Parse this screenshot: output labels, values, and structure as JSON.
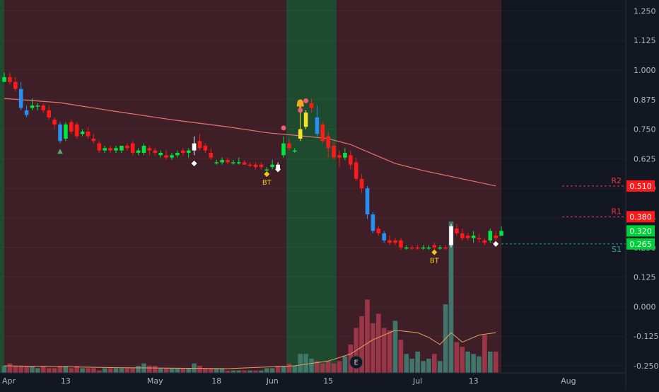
{
  "chart_data": {
    "type": "candlestick",
    "y_axis": {
      "min": -0.28,
      "max": 1.29,
      "ticks": [
        "1.250",
        "1.125",
        "1.000",
        "0.875",
        "0.750",
        "0.625",
        "0.500",
        "0.375",
        "0.250",
        "0.125",
        "0.000",
        "-0.125",
        "-0.250"
      ]
    },
    "x_axis": {
      "labels": [
        {
          "text": "Apr",
          "bar": 0
        },
        {
          "text": "13",
          "bar": 11
        },
        {
          "text": "May",
          "bar": 27
        },
        {
          "text": "18",
          "bar": 38
        },
        {
          "text": "Jun",
          "bar": 48
        },
        {
          "text": "15",
          "bar": 58
        },
        {
          "text": "Jul",
          "bar": 74
        },
        {
          "text": "13",
          "bar": 84
        },
        {
          "text": "Aug",
          "bar": 101
        }
      ]
    },
    "regions": [
      {
        "from": -3,
        "to": 0.5,
        "type": "bull"
      },
      {
        "from": 0.5,
        "to": 51,
        "type": "bear"
      },
      {
        "from": 51,
        "to": 60,
        "type": "bull"
      },
      {
        "from": 60,
        "to": 88.5,
        "type": "bear"
      }
    ],
    "colors": {
      "up": "#00e640",
      "down": "#ff1a1a",
      "strong_down": "#2a8df0",
      "strong_up": "#f5e12b",
      "neutral": "#ffffff",
      "ma": "#e8736c",
      "vol_up": "#3f7a6e",
      "vol_down": "#a0384a",
      "vol_ma": "#e8a060",
      "bull_bg": "#1e4a30",
      "bear_bg": "#3e1f28",
      "price_badge_up": "#00d03a",
      "price_badge_down": "#ff1a1a"
    },
    "candles": [
      [
        0.97,
        0.99,
        0.95,
        0.95,
        "up"
      ],
      [
        0.97,
        0.99,
        0.94,
        0.95,
        "down"
      ],
      [
        0.95,
        0.97,
        0.91,
        0.92,
        "down"
      ],
      [
        0.92,
        0.95,
        0.83,
        0.84,
        "strong_down"
      ],
      [
        0.83,
        0.85,
        0.8,
        0.81,
        "strong_down"
      ],
      [
        0.84,
        0.88,
        0.83,
        0.85,
        "up"
      ],
      [
        0.85,
        0.86,
        0.83,
        0.85,
        "up"
      ],
      [
        0.85,
        0.86,
        0.82,
        0.83,
        "down"
      ],
      [
        0.83,
        0.85,
        0.79,
        0.8,
        "down"
      ],
      [
        0.79,
        0.8,
        0.75,
        0.77,
        "down"
      ],
      [
        0.77,
        0.78,
        0.69,
        0.7,
        "strong_down"
      ],
      [
        0.71,
        0.78,
        0.7,
        0.77,
        "up"
      ],
      [
        0.78,
        0.79,
        0.73,
        0.74,
        "down"
      ],
      [
        0.77,
        0.78,
        0.71,
        0.72,
        "down"
      ],
      [
        0.73,
        0.75,
        0.72,
        0.74,
        "up"
      ],
      [
        0.74,
        0.76,
        0.71,
        0.72,
        "down"
      ],
      [
        0.71,
        0.73,
        0.69,
        0.7,
        "down"
      ],
      [
        0.69,
        0.7,
        0.65,
        0.66,
        "down"
      ],
      [
        0.66,
        0.68,
        0.65,
        0.67,
        "up"
      ],
      [
        0.67,
        0.68,
        0.65,
        0.66,
        "down"
      ],
      [
        0.66,
        0.68,
        0.65,
        0.67,
        "up"
      ],
      [
        0.66,
        0.68,
        0.65,
        0.68,
        "up"
      ],
      [
        0.68,
        0.69,
        0.66,
        0.67,
        "down"
      ],
      [
        0.69,
        0.7,
        0.64,
        0.65,
        "down"
      ],
      [
        0.65,
        0.67,
        0.64,
        0.66,
        "up"
      ],
      [
        0.65,
        0.69,
        0.64,
        0.68,
        "up"
      ],
      [
        0.67,
        0.68,
        0.64,
        0.66,
        "down"
      ],
      [
        0.66,
        0.67,
        0.64,
        0.65,
        "down"
      ],
      [
        0.65,
        0.66,
        0.63,
        0.64,
        "up"
      ],
      [
        0.64,
        0.66,
        0.62,
        0.63,
        "down"
      ],
      [
        0.63,
        0.65,
        0.62,
        0.64,
        "up"
      ],
      [
        0.65,
        0.66,
        0.63,
        0.64,
        "up"
      ],
      [
        0.66,
        0.67,
        0.64,
        0.65,
        "down"
      ],
      [
        0.65,
        0.67,
        0.63,
        0.66,
        "up"
      ],
      [
        0.66,
        0.72,
        0.64,
        0.69,
        "neutral"
      ],
      [
        0.7,
        0.73,
        0.66,
        0.67,
        "down"
      ],
      [
        0.68,
        0.69,
        0.65,
        0.66,
        "down"
      ],
      [
        0.65,
        0.67,
        0.62,
        0.63,
        "down"
      ],
      [
        0.61,
        0.62,
        0.6,
        0.61,
        "up"
      ],
      [
        0.61,
        0.63,
        0.6,
        0.62,
        "up"
      ],
      [
        0.62,
        0.63,
        0.6,
        0.61,
        "down"
      ],
      [
        0.61,
        0.62,
        0.6,
        0.61,
        "up"
      ],
      [
        0.61,
        0.63,
        0.6,
        0.61,
        "up"
      ],
      [
        0.61,
        0.62,
        0.6,
        0.6,
        "down"
      ],
      [
        0.6,
        0.61,
        0.59,
        0.6,
        "down"
      ],
      [
        0.6,
        0.61,
        0.58,
        0.59,
        "down"
      ],
      [
        0.59,
        0.61,
        0.58,
        0.6,
        "down"
      ],
      [
        0.58,
        0.59,
        0.56,
        0.58,
        "up"
      ],
      [
        0.59,
        0.62,
        0.58,
        0.6,
        "up"
      ],
      [
        0.6,
        0.61,
        0.57,
        0.58,
        "neutral"
      ],
      [
        0.64,
        0.72,
        0.63,
        0.69,
        "up"
      ],
      [
        0.69,
        0.71,
        0.66,
        0.67,
        "down"
      ],
      [
        0.66,
        0.67,
        0.65,
        0.66,
        "up"
      ],
      [
        0.71,
        0.85,
        0.7,
        0.75,
        "strong_up"
      ],
      [
        0.76,
        0.83,
        0.75,
        0.82,
        "strong_up"
      ],
      [
        0.84,
        0.88,
        0.82,
        0.86,
        "down"
      ],
      [
        0.8,
        0.85,
        0.72,
        0.73,
        "strong_down"
      ],
      [
        0.77,
        0.78,
        0.69,
        0.7,
        "down"
      ],
      [
        0.72,
        0.74,
        0.63,
        0.67,
        "down"
      ],
      [
        0.68,
        0.7,
        0.62,
        0.63,
        "down"
      ],
      [
        0.64,
        0.66,
        0.59,
        0.63,
        "down"
      ],
      [
        0.63,
        0.67,
        0.62,
        0.65,
        "up"
      ],
      [
        0.64,
        0.66,
        0.58,
        0.6,
        "down"
      ],
      [
        0.61,
        0.63,
        0.53,
        0.54,
        "down"
      ],
      [
        0.54,
        0.56,
        0.48,
        0.5,
        "down"
      ],
      [
        0.5,
        0.51,
        0.37,
        0.39,
        "strong_down"
      ],
      [
        0.39,
        0.4,
        0.31,
        0.32,
        "strong_down"
      ],
      [
        0.33,
        0.34,
        0.3,
        0.31,
        "down"
      ],
      [
        0.31,
        0.32,
        0.27,
        0.28,
        "strong_down"
      ],
      [
        0.28,
        0.3,
        0.26,
        0.27,
        "down"
      ],
      [
        0.27,
        0.29,
        0.26,
        0.28,
        "down"
      ],
      [
        0.28,
        0.29,
        0.24,
        0.25,
        "down"
      ],
      [
        0.25,
        0.26,
        0.24,
        0.25,
        "up"
      ],
      [
        0.25,
        0.26,
        0.24,
        0.25,
        "down"
      ],
      [
        0.25,
        0.26,
        0.24,
        0.25,
        "down"
      ],
      [
        0.25,
        0.26,
        0.24,
        0.25,
        "up"
      ],
      [
        0.25,
        0.26,
        0.24,
        0.25,
        "up"
      ],
      [
        0.26,
        0.27,
        0.24,
        0.25,
        "down"
      ],
      [
        0.25,
        0.26,
        0.24,
        0.25,
        "up"
      ],
      [
        0.25,
        0.26,
        0.24,
        0.25,
        "down"
      ],
      [
        0.26,
        0.35,
        0.25,
        0.34,
        "neutral"
      ],
      [
        0.33,
        0.35,
        0.3,
        0.31,
        "down"
      ],
      [
        0.31,
        0.33,
        0.28,
        0.29,
        "down"
      ],
      [
        0.29,
        0.31,
        0.28,
        0.3,
        "down"
      ],
      [
        0.29,
        0.32,
        0.27,
        0.3,
        "up"
      ],
      [
        0.29,
        0.31,
        0.27,
        0.29,
        "down"
      ],
      [
        0.28,
        0.29,
        0.26,
        0.27,
        "down"
      ],
      [
        0.28,
        0.33,
        0.27,
        0.32,
        "up"
      ],
      [
        0.3,
        0.32,
        0.28,
        0.29,
        "down"
      ],
      [
        0.3,
        0.34,
        0.3,
        0.32,
        "up"
      ]
    ],
    "moving_average": [
      [
        0,
        0.88
      ],
      [
        10,
        0.862
      ],
      [
        20,
        0.825
      ],
      [
        30,
        0.79
      ],
      [
        40,
        0.76
      ],
      [
        47,
        0.735
      ],
      [
        54,
        0.72
      ],
      [
        58,
        0.71
      ],
      [
        62,
        0.685
      ],
      [
        66,
        0.645
      ],
      [
        70,
        0.605
      ],
      [
        75,
        0.575
      ],
      [
        80,
        0.55
      ],
      [
        85,
        0.525
      ],
      [
        88,
        0.51
      ]
    ],
    "volume": {
      "scale_max": 0.5,
      "values": [
        0.03,
        0.04,
        0.03,
        0.03,
        0.03,
        0.03,
        0.02,
        0.03,
        0.02,
        0.02,
        0.03,
        0.03,
        0.02,
        0.03,
        0.02,
        0.02,
        0.02,
        0.01,
        0.02,
        0.02,
        0.02,
        0.02,
        0.02,
        0.02,
        0.03,
        0.04,
        0.03,
        0.03,
        0.02,
        0.02,
        0.02,
        0.02,
        0.02,
        0.02,
        0.04,
        0.03,
        0.02,
        0.02,
        0.02,
        0.02,
        0.01,
        0.01,
        0.01,
        0.01,
        0.01,
        0.01,
        0.01,
        0.02,
        0.02,
        0.03,
        0.03,
        0.04,
        0.03,
        0.08,
        0.08,
        0.06,
        0.05,
        0.04,
        0.05,
        0.04,
        0.05,
        0.07,
        0.12,
        0.19,
        0.24,
        0.31,
        0.21,
        0.25,
        0.19,
        0.18,
        0.22,
        0.14,
        0.08,
        0.06,
        0.09,
        0.05,
        0.06,
        0.08,
        0.05,
        0.29,
        0.64,
        0.13,
        0.11,
        0.09,
        0.08,
        0.07,
        0.16,
        0.09,
        0.09
      ],
      "ma": [
        [
          0,
          0.03
        ],
        [
          20,
          0.022
        ],
        [
          40,
          0.018
        ],
        [
          52,
          0.03
        ],
        [
          58,
          0.05
        ],
        [
          62,
          0.08
        ],
        [
          66,
          0.14
        ],
        [
          70,
          0.18
        ],
        [
          74,
          0.17
        ],
        [
          76,
          0.15
        ],
        [
          78,
          0.12
        ],
        [
          80,
          0.17
        ],
        [
          82,
          0.13
        ],
        [
          85,
          0.16
        ],
        [
          88,
          0.17
        ]
      ]
    },
    "level_lines": [
      {
        "label": "R2",
        "value": 0.51,
        "color": "#f23645"
      },
      {
        "label": "R1",
        "value": 0.38,
        "color": "#f23645"
      },
      {
        "label": "S1",
        "value": 0.265,
        "color": "#22ab94"
      }
    ],
    "price_badges": [
      {
        "text": "0.510",
        "value": 0.51,
        "color": "#ff1a1a"
      },
      {
        "text": "0.380",
        "value": 0.38,
        "color": "#ff1a1a"
      },
      {
        "text": "0.320",
        "value": 0.32,
        "color": "#00d03a"
      },
      {
        "text": "0.265",
        "value": 0.265,
        "color": "#00d03a"
      }
    ],
    "markers": [
      {
        "type": "triangle",
        "bar": 10,
        "value": 0.655,
        "color": "#5aa86a"
      },
      {
        "type": "diamond",
        "bar": 34,
        "value": 0.605,
        "color": "#ffffff"
      },
      {
        "type": "diamond",
        "bar": 49,
        "value": 0.58,
        "color": "#ffffff"
      },
      {
        "type": "diamond",
        "bar": 47,
        "value": 0.56,
        "color": "#f5c518"
      },
      {
        "type": "text",
        "bar": 47,
        "value": 0.515,
        "text": "BT",
        "color": "#f5c518"
      },
      {
        "type": "dot",
        "bar": 50,
        "value": 0.755,
        "color": "#f25c6c"
      },
      {
        "type": "bell",
        "bar": 53,
        "value": 0.855,
        "color": "#f5a623"
      },
      {
        "type": "dot",
        "bar": 53,
        "value": 0.83,
        "color": "#f25c6c"
      },
      {
        "type": "dot",
        "bar": 54,
        "value": 0.87,
        "color": "#f25c6c"
      },
      {
        "type": "diamond",
        "bar": 77,
        "value": 0.23,
        "color": "#f5c518"
      },
      {
        "type": "text",
        "bar": 77,
        "value": 0.185,
        "text": "BT",
        "color": "#f5c518"
      },
      {
        "type": "diamond",
        "bar": 88,
        "value": 0.265,
        "color": "#ffffff"
      }
    ],
    "events": [
      {
        "text": "E",
        "bar": 63
      }
    ]
  }
}
